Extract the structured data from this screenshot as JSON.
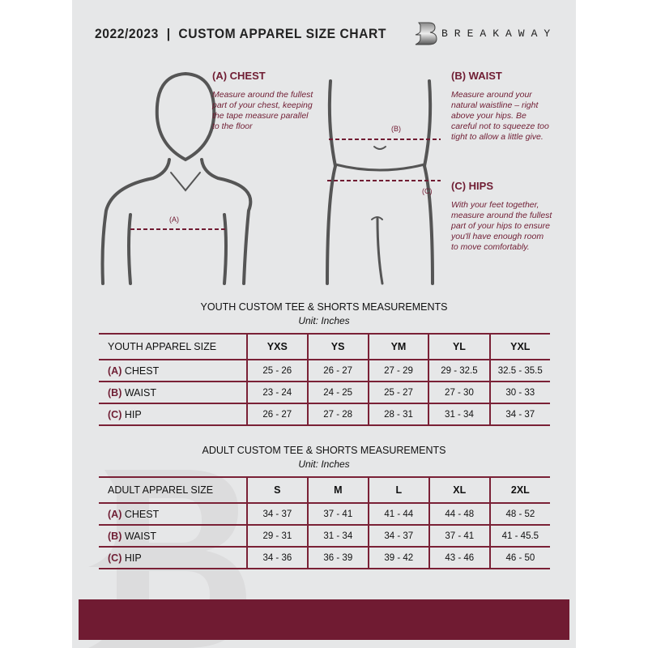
{
  "header": {
    "title": "2022/2023  |  CUSTOM APPAREL SIZE CHART",
    "brand": "BREAKAWAY",
    "logo_letter": "B"
  },
  "chest": {
    "heading": "(A) CHEST",
    "description": "Measure around the fullest part of your chest, keeping the tape measure parallel to the floor",
    "marker": "(A)"
  },
  "waist": {
    "heading": "(B) WAIST",
    "description": "Measure around your natural waistline – right above your hips. Be careful not to squeeze too tight to allow a little give.",
    "marker": "(B)"
  },
  "hips": {
    "heading": "(C) HIPS",
    "description": "With your feet together, measure around the fullest part of your hips to ensure you'll have enough room to move comfortably.",
    "marker": "(C)"
  },
  "youth": {
    "title": "YOUTH CUSTOM TEE & SHORTS MEASUREMENTS",
    "unit": "Unit: Inches",
    "size_label": "YOUTH APPAREL SIZE",
    "sizes": [
      "YXS",
      "YS",
      "YM",
      "YL",
      "YXL"
    ],
    "rows": [
      {
        "letter": "(A)",
        "name": "CHEST",
        "values": [
          "25 - 26",
          "26 - 27",
          "27 - 29",
          "29 - 32.5",
          "32.5 - 35.5"
        ]
      },
      {
        "letter": "(B)",
        "name": "WAIST",
        "values": [
          "23 - 24",
          "24 - 25",
          "25 - 27",
          "27 - 30",
          "30 - 33"
        ]
      },
      {
        "letter": "(C)",
        "name": "HIP",
        "values": [
          "26 - 27",
          "27 - 28",
          "28 - 31",
          "31 - 34",
          "34 - 37"
        ]
      }
    ]
  },
  "adult": {
    "title": "ADULT CUSTOM TEE & SHORTS MEASUREMENTS",
    "unit": "Unit: Inches",
    "size_label": "ADULT APPAREL SIZE",
    "sizes": [
      "S",
      "M",
      "L",
      "XL",
      "2XL"
    ],
    "rows": [
      {
        "letter": "(A)",
        "name": "CHEST",
        "values": [
          "34 - 37",
          "37 - 41",
          "41 - 44",
          "44 - 48",
          "48 - 52"
        ]
      },
      {
        "letter": "(B)",
        "name": "WAIST",
        "values": [
          "29 - 31",
          "31 - 34",
          "34 - 37",
          "37 - 41",
          "41 - 45.5"
        ]
      },
      {
        "letter": "(C)",
        "name": "HIP",
        "values": [
          "34 - 36",
          "36 - 39",
          "39 - 42",
          "43 - 46",
          "46 - 50"
        ]
      }
    ]
  },
  "colors": {
    "accent": "#701b32",
    "background": "#e6e7e8",
    "text": "#222222"
  }
}
